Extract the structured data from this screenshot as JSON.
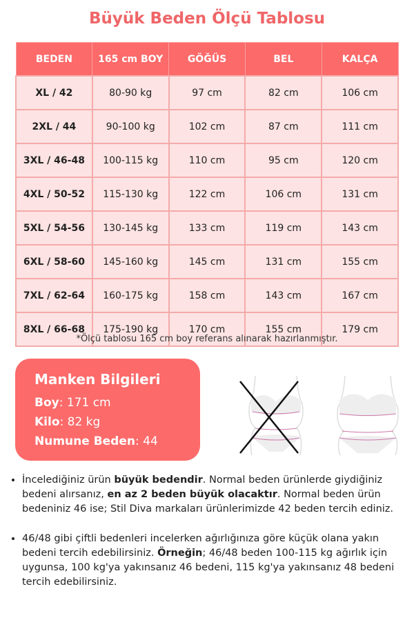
{
  "title": "Büyük Beden Ölçü Tablosu",
  "table": {
    "headers": [
      "BEDEN",
      "165 cm BOY",
      "GÖĞÜS",
      "BEL",
      "KALÇA"
    ],
    "rows": [
      [
        "XL / 42",
        "80-90 kg",
        "97 cm",
        "82 cm",
        "106 cm"
      ],
      [
        "2XL / 44",
        "90-100 kg",
        "102 cm",
        "87 cm",
        "111 cm"
      ],
      [
        "3XL / 46-48",
        "100-115 kg",
        "110 cm",
        "95 cm",
        "120 cm"
      ],
      [
        "4XL / 50-52",
        "115-130 kg",
        "122 cm",
        "106 cm",
        "131 cm"
      ],
      [
        "5XL / 54-56",
        "130-145 kg",
        "133 cm",
        "119 cm",
        "143 cm"
      ],
      [
        "6XL / 58-60",
        "145-160 kg",
        "145 cm",
        "131 cm",
        "155 cm"
      ],
      [
        "7XL / 62-64",
        "160-175 kg",
        "158 cm",
        "143 cm",
        "167 cm"
      ],
      [
        "8XL / 66-68",
        "175-190 kg",
        "170 cm",
        "155 cm",
        "179 cm"
      ]
    ]
  },
  "note": "*Ölçü tablosu 165 cm boy referans alınarak hazırlanmıştır.",
  "model": {
    "title": "Manken Bilgileri",
    "items": [
      {
        "label": "Boy",
        "value": ": 171 cm"
      },
      {
        "label": "Kilo",
        "value": ": 82 kg"
      },
      {
        "label": "Numune Beden",
        "value": ": 44"
      }
    ]
  },
  "bullets": [
    [
      "İncelediğiniz ürün ",
      "büyük bedendir",
      ". Normal beden ürünlerde giydiğiniz bedeni alırsanız, ",
      "en az 2 beden büyük olacaktır",
      ". Normal beden ürün bedeniniz 46 ise; Stil Diva markaları ürünlerimizde 42 beden tercih ediniz."
    ],
    [
      "46/48 gibi çiftli bedenleri incelerken ağırlığınıza göre küçük olana yakın bedeni tercih edebilirsiniz. ",
      "Örneğin",
      "; 46/48 beden 100-115 kg ağırlık için uygunsa, 100 kg'ya yakınsanız 46 bedeni, 115 kg'ya yakınsanız 48 bedeni tercih edebilirsiniz.",
      "",
      ""
    ]
  ],
  "colors": {
    "accent": "#fc6a6a",
    "row_bg": "#fde3e3"
  }
}
